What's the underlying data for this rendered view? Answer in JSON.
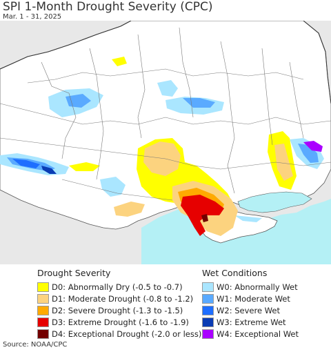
{
  "header": {
    "title": "SPI 1-Month Drought Severity (CPC)",
    "date_range": "Mar. 1 - 31, 2025"
  },
  "legend": {
    "drought": {
      "title": "Drought Severity",
      "items": [
        {
          "label": "D0: Abnormally Dry (-0.5 to -0.7)",
          "color": "#ffff00"
        },
        {
          "label": "D1: Moderate Drought (-0.8 to -1.2)",
          "color": "#fcd37f"
        },
        {
          "label": "D2: Severe Drought (-1.3 to -1.5)",
          "color": "#ffaa00"
        },
        {
          "label": "D3: Extreme Drought (-1.6 to -1.9)",
          "color": "#e60000"
        },
        {
          "label": "D4: Exceptional Drought (-2.0 or less)",
          "color": "#730000"
        }
      ]
    },
    "wet": {
      "title": "Wet Conditions",
      "items": [
        {
          "label": "W0: Abnormally Wet",
          "color": "#aae6ff"
        },
        {
          "label": "W1: Moderate Wet",
          "color": "#5aaaff"
        },
        {
          "label": "W2: Severe Wet",
          "color": "#1e6eff"
        },
        {
          "label": "W3: Extreme Wet",
          "color": "#0a3cb4"
        },
        {
          "label": "W4: Exceptional Wet",
          "color": "#aa00ff"
        }
      ]
    }
  },
  "map": {
    "background_color": "#e8e8e8",
    "land_color": "#ffffff",
    "sea_color": "#b4f0f5",
    "border_color": "#666666"
  },
  "footer": {
    "source": "Source: NOAA/CPC"
  }
}
